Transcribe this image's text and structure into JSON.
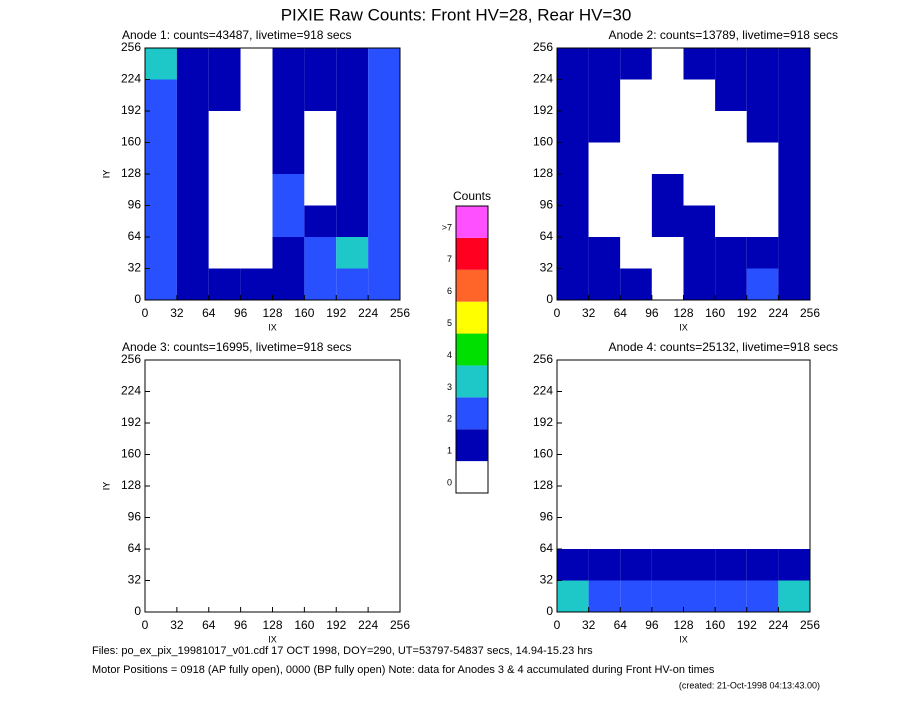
{
  "title": "PIXIE Raw Counts:  Front HV=28, Rear HV=30",
  "chart_data": [
    {
      "type": "heatmap",
      "title": "Anode 1: counts=43487, livetime=918 secs",
      "xlabel": "IX",
      "ylabel": "IY",
      "xlim": [
        0,
        256
      ],
      "ylim": [
        0,
        256
      ],
      "xticks": [
        0,
        32,
        64,
        96,
        128,
        160,
        192,
        224,
        256
      ],
      "yticks": [
        0,
        32,
        64,
        96,
        128,
        160,
        192,
        224,
        256
      ],
      "z": [
        [
          2,
          1,
          1,
          1,
          1,
          2,
          2,
          2
        ],
        [
          2,
          1,
          0,
          0,
          1,
          2,
          3,
          2
        ],
        [
          2,
          1,
          0,
          0,
          2,
          1,
          1,
          2
        ],
        [
          2,
          1,
          0,
          0,
          2,
          0,
          1,
          2
        ],
        [
          2,
          1,
          0,
          0,
          1,
          0,
          1,
          2
        ],
        [
          2,
          1,
          0,
          0,
          1,
          0,
          1,
          2
        ],
        [
          2,
          1,
          1,
          0,
          1,
          1,
          1,
          2
        ],
        [
          3,
          1,
          1,
          0,
          1,
          1,
          1,
          2
        ]
      ]
    },
    {
      "type": "heatmap",
      "title": "Anode 2: counts=13789, livetime=918 secs",
      "xlabel": "IX",
      "ylabel": "IY",
      "xlim": [
        0,
        256
      ],
      "ylim": [
        0,
        256
      ],
      "xticks": [
        0,
        32,
        64,
        96,
        128,
        160,
        192,
        224,
        256
      ],
      "yticks": [
        0,
        32,
        64,
        96,
        128,
        160,
        192,
        224,
        256
      ],
      "z": [
        [
          1,
          1,
          1,
          0,
          1,
          1,
          2,
          1
        ],
        [
          1,
          1,
          0,
          0,
          1,
          1,
          1,
          1
        ],
        [
          1,
          0,
          0,
          1,
          1,
          0,
          0,
          1
        ],
        [
          1,
          0,
          0,
          1,
          0,
          0,
          0,
          1
        ],
        [
          1,
          0,
          0,
          0,
          0,
          0,
          0,
          1
        ],
        [
          1,
          1,
          0,
          0,
          0,
          0,
          1,
          1
        ],
        [
          1,
          1,
          0,
          0,
          0,
          1,
          1,
          1
        ],
        [
          1,
          1,
          1,
          0,
          1,
          1,
          1,
          1
        ]
      ]
    },
    {
      "type": "heatmap",
      "title": "Anode 3: counts=16995, livetime=918 secs",
      "xlabel": "IX",
      "ylabel": "IY",
      "xlim": [
        0,
        256
      ],
      "ylim": [
        0,
        256
      ],
      "xticks": [
        0,
        32,
        64,
        96,
        128,
        160,
        192,
        224,
        256
      ],
      "yticks": [
        0,
        32,
        64,
        96,
        128,
        160,
        192,
        224,
        256
      ],
      "z": [
        [
          0,
          0,
          0,
          0,
          0,
          0,
          0,
          0
        ],
        [
          0,
          0,
          0,
          0,
          0,
          0,
          0,
          0
        ],
        [
          0,
          0,
          0,
          0,
          0,
          0,
          0,
          0
        ],
        [
          0,
          0,
          0,
          0,
          0,
          0,
          0,
          0
        ],
        [
          0,
          0,
          0,
          0,
          0,
          0,
          0,
          0
        ],
        [
          0,
          0,
          0,
          0,
          0,
          0,
          0,
          0
        ],
        [
          0,
          0,
          0,
          0,
          0,
          0,
          0,
          0
        ],
        [
          0,
          0,
          0,
          0,
          0,
          0,
          0,
          0
        ]
      ]
    },
    {
      "type": "heatmap",
      "title": "Anode 4: counts=25132, livetime=918 secs",
      "xlabel": "IX",
      "ylabel": "IY",
      "xlim": [
        0,
        256
      ],
      "ylim": [
        0,
        256
      ],
      "xticks": [
        0,
        32,
        64,
        96,
        128,
        160,
        192,
        224,
        256
      ],
      "yticks": [
        0,
        32,
        64,
        96,
        128,
        160,
        192,
        224,
        256
      ],
      "z": [
        [
          3,
          2,
          2,
          2,
          2,
          2,
          2,
          3
        ],
        [
          1,
          1,
          1,
          1,
          1,
          1,
          1,
          1
        ],
        [
          0,
          0,
          0,
          0,
          0,
          0,
          0,
          0
        ],
        [
          0,
          0,
          0,
          0,
          0,
          0,
          0,
          0
        ],
        [
          0,
          0,
          0,
          0,
          0,
          0,
          0,
          0
        ],
        [
          0,
          0,
          0,
          0,
          0,
          0,
          0,
          0
        ],
        [
          0,
          0,
          0,
          0,
          0,
          0,
          0,
          0
        ],
        [
          0,
          0,
          0,
          0,
          0,
          0,
          0,
          0
        ]
      ]
    }
  ],
  "colorbar": {
    "title": "Counts",
    "ticks": [
      0,
      1,
      2,
      3,
      4,
      5,
      6,
      7,
      {
        "value": 8,
        "label": ">7"
      }
    ],
    "colors": [
      "#ffffff",
      "#0000b4",
      "#2850ff",
      "#1ec8c8",
      "#00e000",
      "#ffff00",
      "#ff6428",
      "#ff0020",
      "#ff50ff"
    ]
  },
  "footer": [
    "Files: po_ex_pix_19981017_v01.cdf    17 OCT 1998, DOY=290, UT=53797-54837 secs, 14.94-15.23 hrs",
    "Motor Positions = 0918 (AP fully open), 0000 (BP fully open)    Note: data for Anodes 3 & 4 accumulated during Front HV-on times",
    "(created: 21-Oct-1998 04:13:43.00)"
  ]
}
